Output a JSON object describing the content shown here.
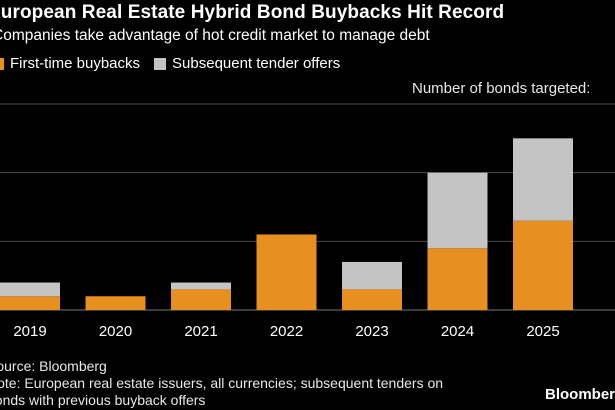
{
  "chart_data": {
    "type": "bar",
    "stacked": true,
    "title": "European Real Estate Hybrid Bond Buybacks Hit Record",
    "subtitle": "Companies take advantage of hot credit market to manage debt",
    "categories": [
      "2019",
      "2020",
      "2021",
      "2022",
      "2023",
      "2024",
      "2025"
    ],
    "series": [
      {
        "name": "First-time buybacks",
        "color": "#E8901F",
        "values": [
          2,
          2,
          3,
          11,
          3,
          9,
          13
        ]
      },
      {
        "name": "Subsequent tender offers",
        "color": "#C4C4C4",
        "values": [
          2,
          0,
          1,
          0,
          4,
          11,
          12
        ]
      }
    ],
    "ylabel": "Number of bonds targeted:",
    "ylim": [
      0,
      30
    ],
    "grid": true,
    "legend_position": "top-left"
  },
  "footer": {
    "source": "Source: Bloomberg",
    "note_line1": "Note: European real estate issuers, all currencies; subsequent tenders on",
    "note_line2": "bonds with previous buyback offers"
  },
  "brand": "Bloomberg"
}
